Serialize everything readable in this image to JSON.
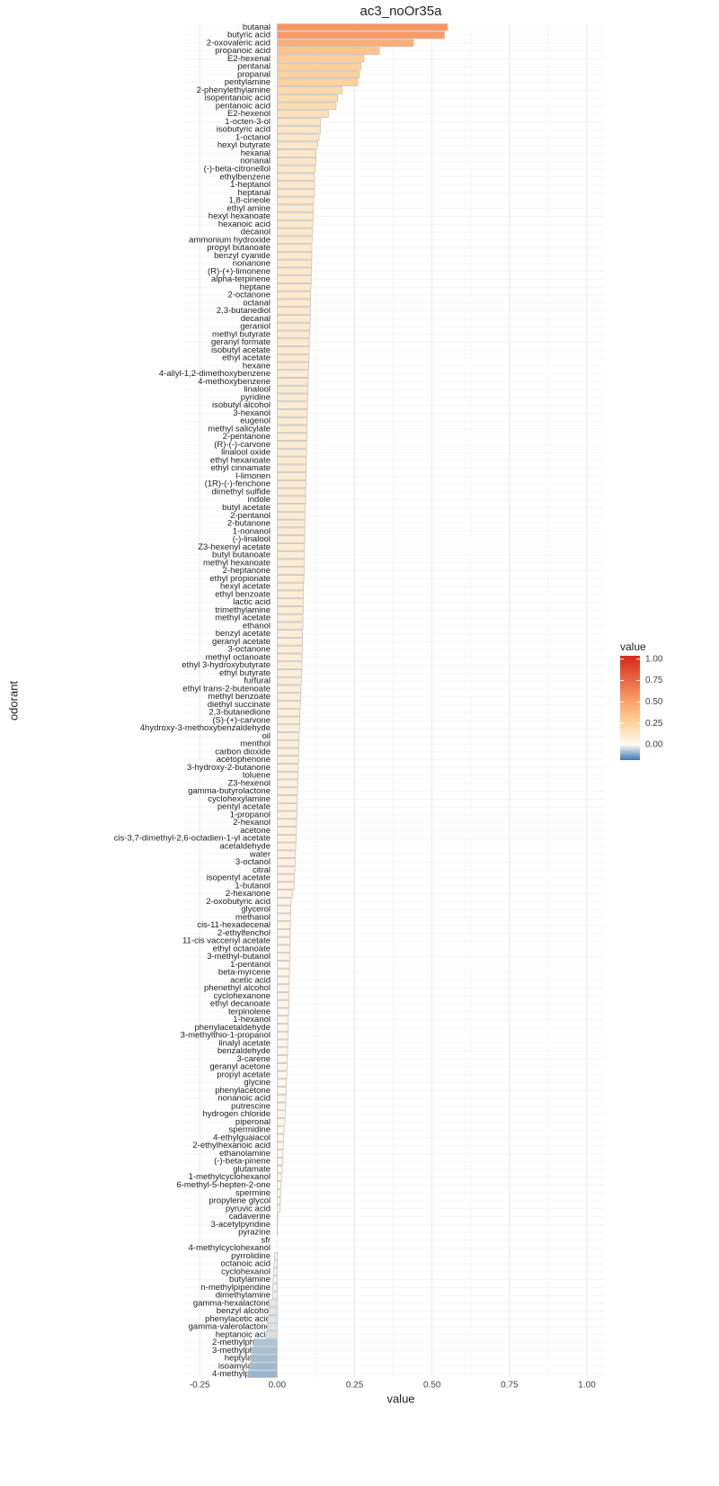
{
  "chart_data": {
    "type": "bar",
    "orientation": "horizontal",
    "title": "ac3_noOr35a",
    "x_label": "value",
    "y_label": "odorant",
    "categories": [
      "butanal",
      "butyric acid",
      "2-oxovaleric acid",
      "propanoic acid",
      "E2-hexenal",
      "pentanal",
      "propanal",
      "pentylamine",
      "2-phenylethylamine",
      "isopentanoic acid",
      "pentanoic acid",
      "E2-hexenol",
      "1-octen-3-ol",
      "isobutyric acid",
      "1-octanol",
      "hexyl butyrate",
      "hexanal",
      "nonanal",
      "(-)-beta-citronellol",
      "ethylbenzene",
      "1-heptanol",
      "heptanal",
      "1,8-cineole",
      "ethyl amine",
      "hexyl hexanoate",
      "hexanoic acid",
      "decanol",
      "ammonium hydroxide",
      "propyl butanoate",
      "benzyl cyanide",
      "nonanone",
      "(R)-(+)-limonene",
      "alpha-terpinene",
      "heptane",
      "2-octanone",
      "octanal",
      "2,3-butanediol",
      "decanal",
      "geraniol",
      "methyl butyrate",
      "geranyl formate",
      "isobutyl acetate",
      "ethyl acetate",
      "hexane",
      "4-allyl-1,2-dimethoxybenzene",
      "4-methoxybenzene",
      "linalool",
      "pyridine",
      "isobutyl alcohol",
      "3-hexanol",
      "eugenol",
      "methyl salicylate",
      "2-pentanone",
      "(R)-(-)-carvone",
      "linalool oxide",
      "ethyl hexanoate",
      "ethyl cinnamate",
      "l-limonen",
      "(1R)-(-)-fenchone",
      "dimethyl sulfide",
      "indole",
      "butyl acetate",
      "2-pentanol",
      "2-butanone",
      "1-nonanol",
      "(-)-linalool",
      "Z3-hexenyl acetate",
      "butyl butanoate",
      "methyl hexanoate",
      "2-heptanone",
      "ethyl propionate",
      "hexyl acetate",
      "ethyl benzoate",
      "lactic acid",
      "trimethylamine",
      "methyl acetate",
      "ethanol",
      "benzyl acetate",
      "geranyl acetate",
      "3-octanone",
      "methyl octanoate",
      "ethyl 3-hydroxybutyrate",
      "ethyl butyrate",
      "furfural",
      "ethyl trans-2-butenoate",
      "methyl benzoate",
      "diethyl succinate",
      "2,3-butanedione",
      "(S)-(+)-carvone",
      "4hydroxy-3-methoxybenzaldehyde",
      "oil",
      "menthol",
      "carbon dioxide",
      "acetophenone",
      "3-hydroxy-2-butanone",
      "toluene",
      "Z3-hexenol",
      "gamma-butyrolactone",
      "cyclohexylamine",
      "pentyl acetate",
      "1-propanol",
      "2-hexanol",
      "acetone",
      "cis-3,7-dimethyl-2,6-octadien-1-yl acetate",
      "acetaldehyde",
      "water",
      "3-octanol",
      "citral",
      "isopentyl acetate",
      "1-butanol",
      "2-hexanone",
      "2-oxobutyric acid",
      "glycerol",
      "methanol",
      "cis-11-hexadecenal",
      "2-ethylfenchol",
      "11-cis vaccenyl acetate",
      "ethyl octanoate",
      "3-methyl-butanol",
      "1-pentanol",
      "beta-myrcene",
      "acetic acid",
      "phenethyl alcohol",
      "cyclohexanone",
      "ethyl decanoate",
      "terpinolene",
      "1-hexanol",
      "phenylacetaldehyde",
      "3-methylthio-1-propanol",
      "linalyl acetate",
      "benzaldehyde",
      "3-carene",
      "geranyl acetone",
      "propyl acetate",
      "glycine",
      "phenylacetone",
      "nonanoic acid",
      "putrescine",
      "hydrogen chloride",
      "piperonal",
      "spermidine",
      "4-ethylguaiacol",
      "2-ethylhexanoic acid",
      "ethanolamine",
      "(-)-beta-pinene",
      "glutamate",
      "1-methylcyclohexanol",
      "6-methyl-5-hepten-2-one",
      "spermine",
      "propylene glycol",
      "pyruvic acid",
      "cadaverine",
      "3-acetylpyridine",
      "pyrazine",
      "sfr",
      "4-methylcyclohexanol",
      "pyrrolidine",
      "octanoic acid",
      "cyclohexanol",
      "butylamine",
      "n-methylpiperidine",
      "dimethylamine",
      "gamma-hexalactone",
      "benzyl alcohol",
      "phenylacetic acid",
      "gamma-valerolactone",
      "heptanoic acid",
      "2-methylphenol",
      "3-methylphenol",
      "heptylamine",
      "isoamylamine",
      "4-methylphenol"
    ],
    "values": [
      0.55,
      0.54,
      0.44,
      0.33,
      0.28,
      0.27,
      0.265,
      0.26,
      0.21,
      0.195,
      0.19,
      0.165,
      0.14,
      0.14,
      0.135,
      0.13,
      0.125,
      0.125,
      0.122,
      0.12,
      0.12,
      0.12,
      0.118,
      0.117,
      0.116,
      0.115,
      0.114,
      0.113,
      0.112,
      0.112,
      0.111,
      0.111,
      0.11,
      0.109,
      0.108,
      0.108,
      0.107,
      0.107,
      0.106,
      0.105,
      0.104,
      0.103,
      0.103,
      0.102,
      0.101,
      0.1,
      0.1,
      0.099,
      0.098,
      0.097,
      0.097,
      0.096,
      0.096,
      0.095,
      0.095,
      0.094,
      0.094,
      0.093,
      0.093,
      0.092,
      0.092,
      0.091,
      0.09,
      0.09,
      0.089,
      0.089,
      0.088,
      0.088,
      0.087,
      0.087,
      0.086,
      0.085,
      0.085,
      0.084,
      0.084,
      0.083,
      0.083,
      0.082,
      0.082,
      0.081,
      0.08,
      0.08,
      0.079,
      0.078,
      0.077,
      0.076,
      0.075,
      0.074,
      0.073,
      0.072,
      0.071,
      0.07,
      0.07,
      0.069,
      0.068,
      0.067,
      0.066,
      0.066,
      0.065,
      0.064,
      0.064,
      0.063,
      0.062,
      0.061,
      0.06,
      0.059,
      0.058,
      0.057,
      0.056,
      0.055,
      0.05,
      0.045,
      0.044,
      0.043,
      0.043,
      0.042,
      0.042,
      0.041,
      0.041,
      0.04,
      0.04,
      0.039,
      0.039,
      0.038,
      0.038,
      0.037,
      0.036,
      0.036,
      0.035,
      0.034,
      0.034,
      0.033,
      0.032,
      0.031,
      0.03,
      0.029,
      0.028,
      0.027,
      0.026,
      0.025,
      0.022,
      0.021,
      0.02,
      0.019,
      0.018,
      0.016,
      0.014,
      0.012,
      0.011,
      0.01,
      0.009,
      0.002,
      0.001,
      0.001,
      0,
      0,
      -0.008,
      -0.01,
      -0.012,
      -0.013,
      -0.014,
      -0.015,
      -0.025,
      -0.027,
      -0.03,
      -0.032,
      -0.035,
      -0.075,
      -0.082,
      -0.085,
      -0.09,
      -0.095
    ],
    "xlim": [
      -0.3,
      1.055
    ],
    "xticks": [
      {
        "value": -0.25,
        "label": "-0.25"
      },
      {
        "value": 0,
        "label": "0.00"
      },
      {
        "value": 0.25,
        "label": "0.25"
      },
      {
        "value": 0.5,
        "label": "0.50"
      },
      {
        "value": 0.75,
        "label": "0.75"
      },
      {
        "value": 1,
        "label": "1.00"
      }
    ],
    "grid": true,
    "bar_border_color": "#c4c4c4",
    "legend": {
      "title": "value",
      "position": "right",
      "range": [
        -0.18,
        1.04
      ],
      "ticks": [
        {
          "value": 1,
          "label": "1.00"
        },
        {
          "value": 0.75,
          "label": "0.75"
        },
        {
          "value": 0.5,
          "label": "0.50"
        },
        {
          "value": 0.25,
          "label": "0.25"
        },
        {
          "value": 0,
          "label": "0.00"
        }
      ],
      "color_stops": [
        {
          "value": -0.18,
          "color": "#3b78b4"
        },
        {
          "value": 0,
          "color": "#fffaf2"
        },
        {
          "value": 0.25,
          "color": "#fdd49e"
        },
        {
          "value": 0.5,
          "color": "#fca36a"
        },
        {
          "value": 1,
          "color": "#d7301f"
        }
      ]
    }
  }
}
